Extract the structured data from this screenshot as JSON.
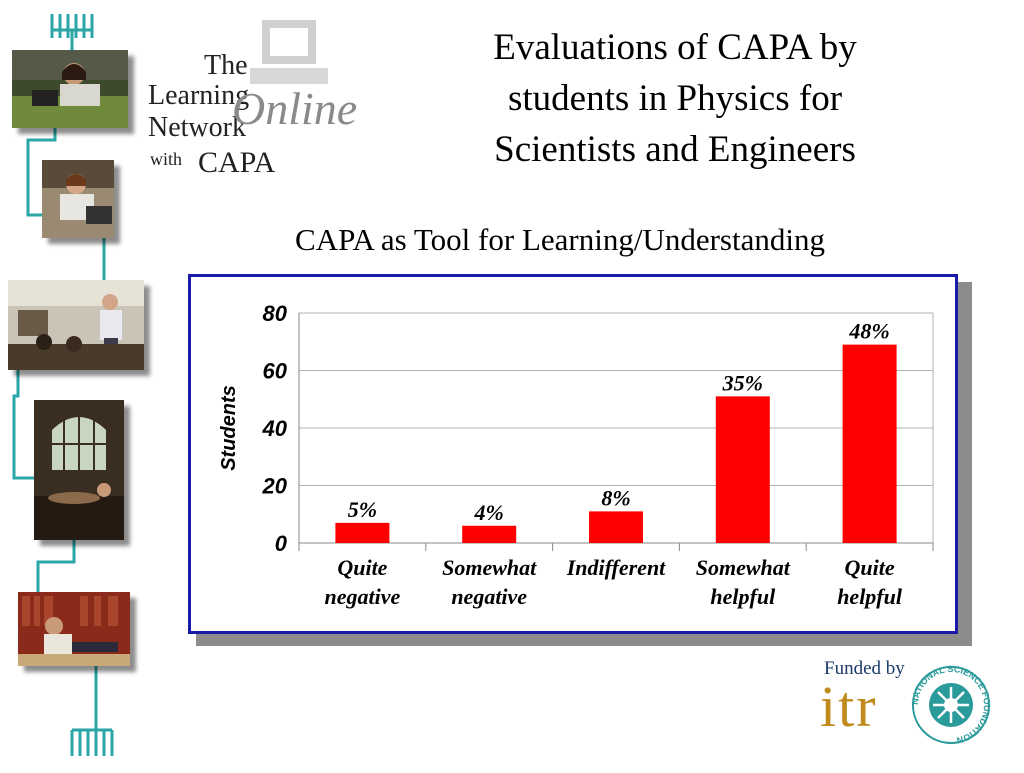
{
  "logo": {
    "the": "The",
    "learning": "Learning",
    "network": "Network",
    "with": "with",
    "capa": "CAPA",
    "online": "Online"
  },
  "slide": {
    "title_lines": [
      "Evaluations of CAPA by",
      "students in Physics for",
      "Scientists and Engineers"
    ],
    "subtitle": "CAPA as Tool for Learning/Understanding"
  },
  "chart_data": {
    "type": "bar",
    "categories": [
      [
        "Quite",
        "negative"
      ],
      [
        "Somewhat",
        "negative"
      ],
      [
        "Indifferent"
      ],
      [
        "Somewhat",
        "helpful"
      ],
      [
        "Quite",
        "helpful"
      ]
    ],
    "values": [
      7,
      6,
      11,
      51,
      69
    ],
    "data_labels": [
      "5%",
      "4%",
      "8%",
      "35%",
      "48%"
    ],
    "ylabel": "Students",
    "ylim": [
      0,
      80
    ],
    "yticks": [
      0,
      20,
      40,
      60,
      80
    ],
    "grid": true,
    "legend": "none",
    "bar_color": "#ff0000"
  },
  "funding": {
    "funded_by": "Funded by",
    "itr": "itr",
    "nsf_ring_text": "NATIONAL SCIENCE FOUNDATION"
  },
  "colors": {
    "frame_border": "#1a1aa8",
    "teal_line": "#2aa6a6",
    "itr_gold": "#c08a1c"
  }
}
